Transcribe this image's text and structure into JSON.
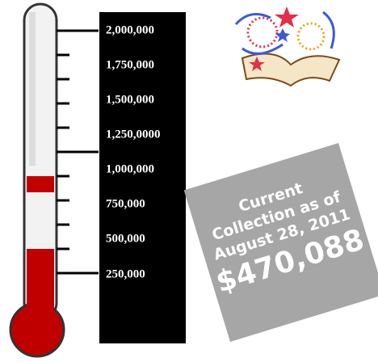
{
  "scale": {
    "labels": [
      "2,000,000",
      "1,750,000",
      "1,500,000",
      "1,250,0000",
      "1,000,000",
      "750,000",
      "500,000",
      "250,000"
    ]
  },
  "callout": {
    "lines": [
      "Current",
      "Collection as of",
      "August 28, 2011"
    ],
    "amount": "$470,088"
  }
}
